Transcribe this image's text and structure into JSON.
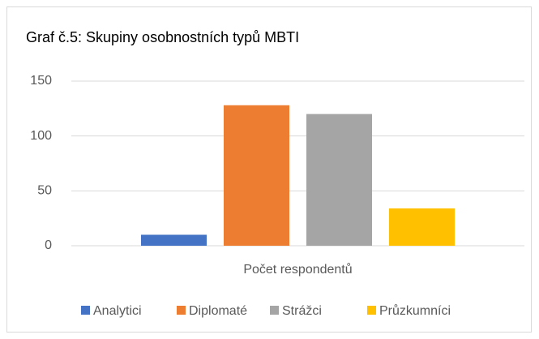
{
  "chart_data": {
    "type": "bar",
    "title": "Graf č.5: Skupiny osobnostních typů MBTI",
    "categories": [
      "Počet respondentů"
    ],
    "series": [
      {
        "name": "Analytici",
        "color": "#4472c4",
        "values": [
          10
        ]
      },
      {
        "name": "Diplomaté",
        "color": "#ed7d31",
        "values": [
          128
        ]
      },
      {
        "name": "Strážci",
        "color": "#a5a5a5",
        "values": [
          120
        ]
      },
      {
        "name": "Průzkumníci",
        "color": "#ffc000",
        "values": [
          34
        ]
      }
    ],
    "ylim": [
      0,
      150
    ],
    "yticks": [
      0,
      50,
      100,
      150
    ],
    "grid": true,
    "legend": "bottom"
  }
}
